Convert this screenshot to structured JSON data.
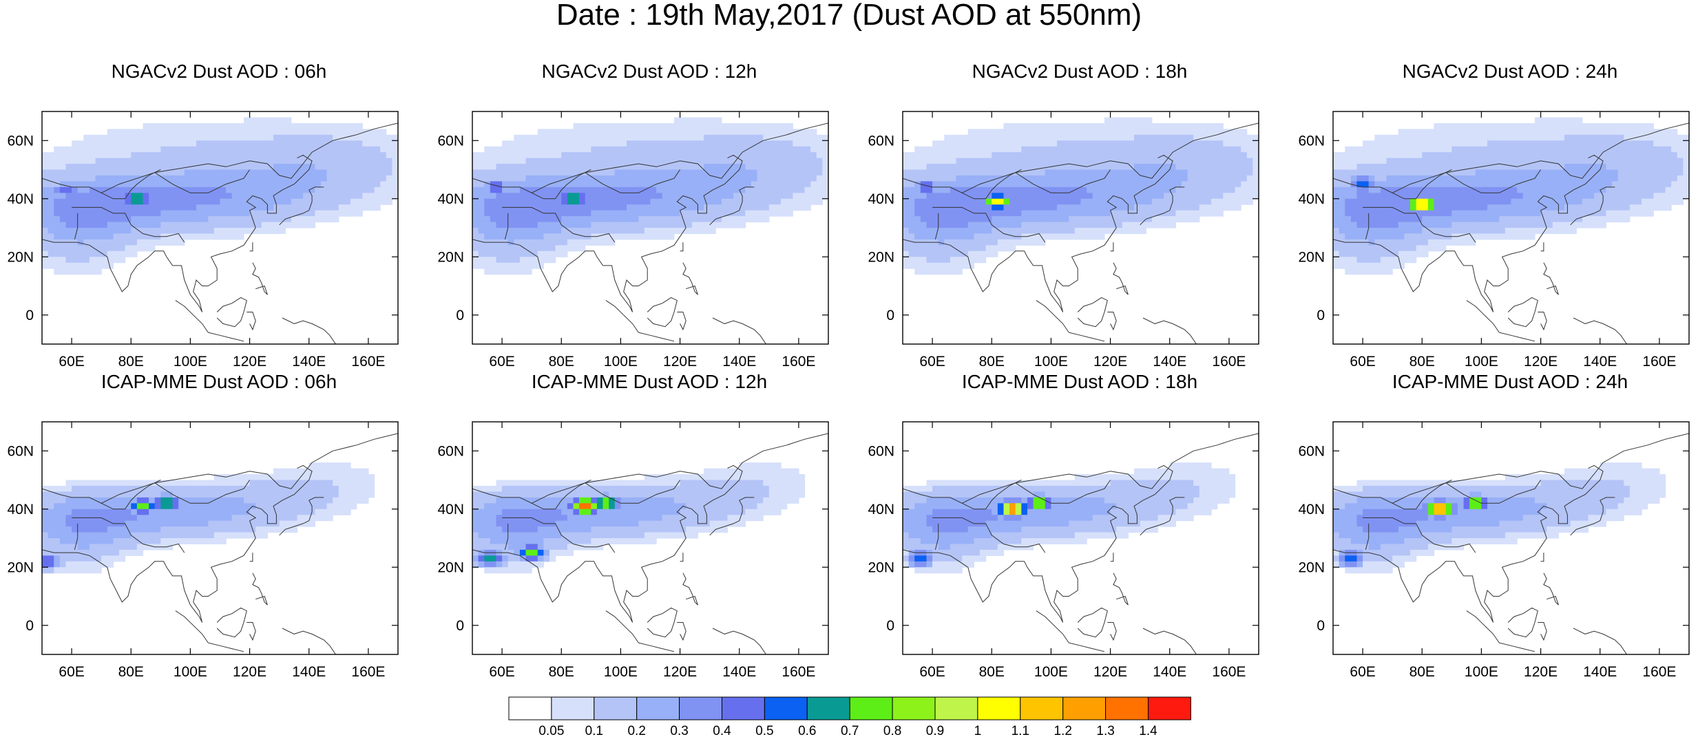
{
  "title": "Date : 19th May,2017 (Dust AOD at 550nm)",
  "axes": {
    "lon_range": [
      50,
      170
    ],
    "lat_range": [
      -10,
      70
    ],
    "lon_ticks": [
      "60E",
      "80E",
      "100E",
      "120E",
      "140E",
      "160E"
    ],
    "lon_tick_values": [
      60,
      80,
      100,
      120,
      140,
      160
    ],
    "lat_ticks": [
      "60N",
      "40N",
      "20N",
      "0"
    ],
    "lat_tick_values": [
      60,
      40,
      20,
      0
    ]
  },
  "panels": [
    {
      "title": "NGACv2 Dust AOD : 06h",
      "model": "NGACv2",
      "hour": "06h",
      "hotspots": [
        {
          "lon": 82,
          "lat": 40,
          "aod": 0.8
        },
        {
          "lon": 58,
          "lat": 43,
          "aod": 0.5
        }
      ]
    },
    {
      "title": "NGACv2 Dust AOD : 12h",
      "model": "NGACv2",
      "hour": "12h",
      "hotspots": [
        {
          "lon": 84,
          "lat": 40,
          "aod": 0.8
        },
        {
          "lon": 58,
          "lat": 44,
          "aod": 0.5
        }
      ]
    },
    {
      "title": "NGACv2 Dust AOD : 18h",
      "model": "NGACv2",
      "hour": "18h",
      "hotspots": [
        {
          "lon": 82,
          "lat": 39,
          "aod": 1.1
        },
        {
          "lon": 58,
          "lat": 44,
          "aod": 0.5
        }
      ]
    },
    {
      "title": "NGACv2 Dust AOD : 24h",
      "model": "NGACv2",
      "hour": "24h",
      "hotspots": [
        {
          "lon": 80,
          "lat": 38,
          "aod": 1.3
        },
        {
          "lon": 60,
          "lat": 45,
          "aod": 0.6
        }
      ]
    },
    {
      "title": "ICAP-MME Dust AOD : 06h",
      "model": "ICAP-MME",
      "hour": "06h",
      "hotspots": [
        {
          "lon": 84,
          "lat": 41,
          "aod": 0.8
        },
        {
          "lon": 92,
          "lat": 42,
          "aod": 0.8
        },
        {
          "lon": 52,
          "lat": 22,
          "aod": 0.5
        }
      ]
    },
    {
      "title": "ICAP-MME Dust AOD : 12h",
      "model": "ICAP-MME",
      "hour": "12h",
      "hotspots": [
        {
          "lon": 88,
          "lat": 41,
          "aod": 1.4
        },
        {
          "lon": 95,
          "lat": 42,
          "aod": 0.9
        },
        {
          "lon": 56,
          "lat": 23,
          "aod": 0.7
        },
        {
          "lon": 70,
          "lat": 25,
          "aod": 0.8
        }
      ]
    },
    {
      "title": "ICAP-MME Dust AOD : 18h",
      "model": "ICAP-MME",
      "hour": "18h",
      "hotspots": [
        {
          "lon": 87,
          "lat": 40,
          "aod": 1.4
        },
        {
          "lon": 96,
          "lat": 42,
          "aod": 0.9
        },
        {
          "lon": 56,
          "lat": 23,
          "aod": 0.6
        }
      ]
    },
    {
      "title": "ICAP-MME Dust AOD : 24h",
      "model": "ICAP-MME",
      "hour": "24h",
      "hotspots": [
        {
          "lon": 86,
          "lat": 40,
          "aod": 1.4
        },
        {
          "lon": 98,
          "lat": 42,
          "aod": 0.9
        },
        {
          "lon": 56,
          "lat": 23,
          "aod": 0.6
        }
      ]
    }
  ],
  "colorbar": {
    "labels": [
      "0.05",
      "0.1",
      "0.2",
      "0.3",
      "0.4",
      "0.5",
      "0.6",
      "0.7",
      "0.8",
      "0.9",
      "1",
      "1.1",
      "1.2",
      "1.3",
      "1.4"
    ],
    "colors": [
      "#ffffff",
      "#d6e0fb",
      "#b4c4f7",
      "#98b0f7",
      "#8093f3",
      "#6670ef",
      "#0a61f2",
      "#0a9a94",
      "#5dee17",
      "#8cf21a",
      "#bff54a",
      "#ffff00",
      "#ffc400",
      "#ff9f00",
      "#ff7200",
      "#ff1a10"
    ]
  }
}
